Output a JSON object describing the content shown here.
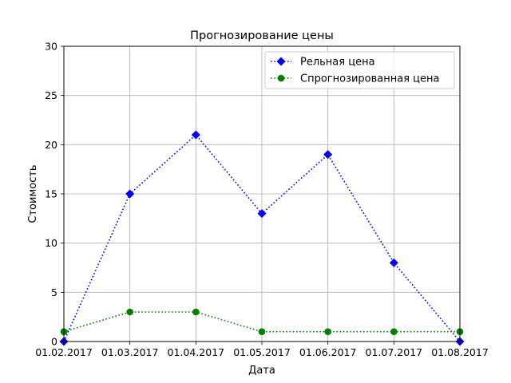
{
  "chart_data": {
    "type": "line",
    "title": "Прогнозирование цены",
    "xlabel": "Дата",
    "ylabel": "Стоимость",
    "categories": [
      "01.02.2017",
      "01.03.2017",
      "01.04.2017",
      "01.05.2017",
      "01.06.2017",
      "01.07.2017",
      "01.08.2017"
    ],
    "ylim": [
      0,
      30
    ],
    "yticks": [
      0,
      5,
      10,
      15,
      20,
      25,
      30
    ],
    "grid": true,
    "legend_position": "top-right",
    "series": [
      {
        "name": "Рельная цена",
        "values": [
          0,
          15,
          21,
          13,
          19,
          8,
          0
        ],
        "color": "#0000ff",
        "marker": "diamond",
        "line_style": "dotted"
      },
      {
        "name": "Спрогнозированная цена",
        "values": [
          1,
          3,
          3,
          1,
          1,
          1,
          1
        ],
        "color": "#008000",
        "marker": "circle",
        "line_style": "dotted"
      }
    ]
  }
}
